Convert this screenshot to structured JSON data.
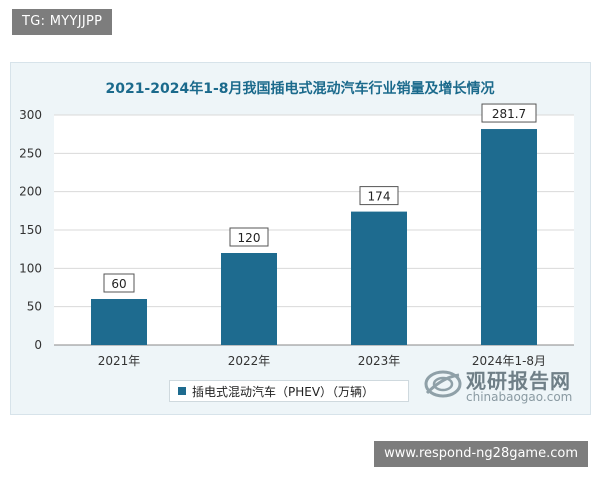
{
  "overlays": {
    "top_left_tag": "TG: MYYJJPP",
    "bottom_right_url": "www.respond-ng28game.com"
  },
  "watermark": {
    "cn": "观研报告网",
    "en": "chinabaogao.com"
  },
  "colors": {
    "bar": "#1e6b8f",
    "plot_bg": "#ffffff",
    "card_bg": "#eef5f8",
    "title": "#1b6a8c"
  },
  "chart_data": {
    "type": "bar",
    "title": "2021-2024年1-8月我国插电式混动汽车行业销量及增长情况",
    "xlabel": "",
    "ylabel": "",
    "categories": [
      "2021年",
      "2022年",
      "2023年",
      "2024年1-8月"
    ],
    "series": [
      {
        "name": "插电式混动汽车（PHEV）（万辆）",
        "values": [
          60,
          120,
          174,
          281.7
        ]
      }
    ],
    "data_labels": [
      "60",
      "120",
      "174",
      "281.7"
    ],
    "ylim": [
      0,
      300
    ],
    "yticks": [
      "0",
      "50",
      "100",
      "150",
      "200",
      "250",
      "300"
    ],
    "grid": true,
    "legend_position": "bottom"
  }
}
